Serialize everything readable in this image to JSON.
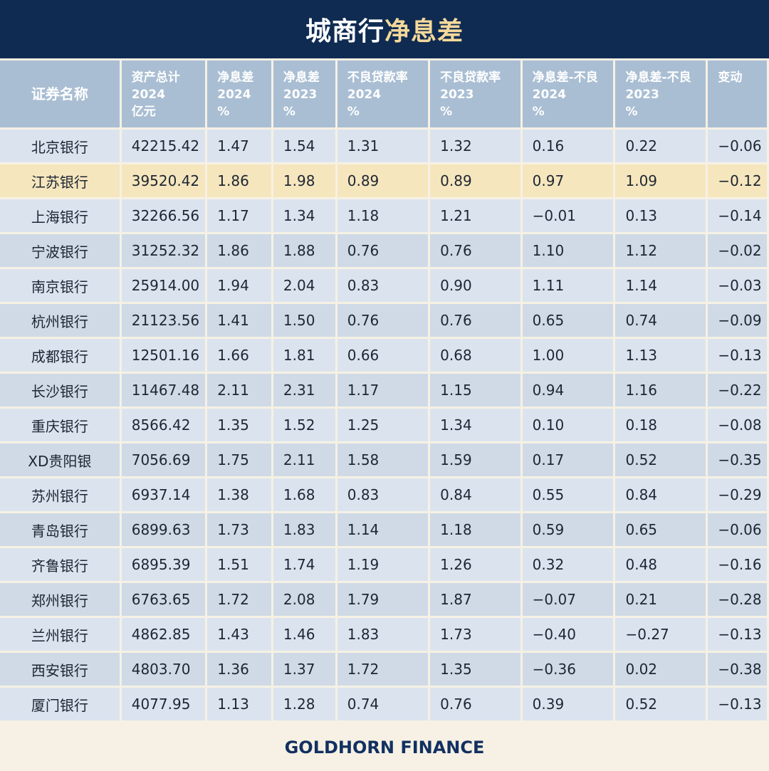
{
  "title": {
    "part1": "城商行",
    "part2": "净息差"
  },
  "colors": {
    "header_bg": "#0f2b52",
    "accent_gold": "#f4d99a",
    "highlight_row": "#f6e6bd"
  },
  "footer": "GOLDHORN FINANCE",
  "chart_data": {
    "type": "table",
    "highlight_row_index": 1,
    "columns": [
      {
        "lines": [
          "证券名称"
        ]
      },
      {
        "lines": [
          "资产总计",
          "2024",
          "亿元"
        ]
      },
      {
        "lines": [
          "净息差",
          "2024",
          "%"
        ]
      },
      {
        "lines": [
          "净息差",
          "2023",
          "%"
        ]
      },
      {
        "lines": [
          "不良贷款率",
          "2024",
          "%"
        ]
      },
      {
        "lines": [
          "不良贷款率",
          "2023",
          "%"
        ]
      },
      {
        "lines": [
          "净息差-不良",
          "2024",
          "%"
        ]
      },
      {
        "lines": [
          "净息差-不良",
          "2023",
          "%"
        ]
      },
      {
        "lines": [
          "变动"
        ]
      }
    ],
    "rows": [
      [
        "北京银行",
        "42215.42",
        "1.47",
        "1.54",
        "1.31",
        "1.32",
        "0.16",
        "0.22",
        "−0.06"
      ],
      [
        "江苏银行",
        "39520.42",
        "1.86",
        "1.98",
        "0.89",
        "0.89",
        "0.97",
        "1.09",
        "−0.12"
      ],
      [
        "上海银行",
        "32266.56",
        "1.17",
        "1.34",
        "1.18",
        "1.21",
        "−0.01",
        "0.13",
        "−0.14"
      ],
      [
        "宁波银行",
        "31252.32",
        "1.86",
        "1.88",
        "0.76",
        "0.76",
        "1.10",
        "1.12",
        "−0.02"
      ],
      [
        "南京银行",
        "25914.00",
        "1.94",
        "2.04",
        "0.83",
        "0.90",
        "1.11",
        "1.14",
        "−0.03"
      ],
      [
        "杭州银行",
        "21123.56",
        "1.41",
        "1.50",
        "0.76",
        "0.76",
        "0.65",
        "0.74",
        "−0.09"
      ],
      [
        "成都银行",
        "12501.16",
        "1.66",
        "1.81",
        "0.66",
        "0.68",
        "1.00",
        "1.13",
        "−0.13"
      ],
      [
        "长沙银行",
        "11467.48",
        "2.11",
        "2.31",
        "1.17",
        "1.15",
        "0.94",
        "1.16",
        "−0.22"
      ],
      [
        "重庆银行",
        "8566.42",
        "1.35",
        "1.52",
        "1.25",
        "1.34",
        "0.10",
        "0.18",
        "−0.08"
      ],
      [
        "XD贵阳银",
        "7056.69",
        "1.75",
        "2.11",
        "1.58",
        "1.59",
        "0.17",
        "0.52",
        "−0.35"
      ],
      [
        "苏州银行",
        "6937.14",
        "1.38",
        "1.68",
        "0.83",
        "0.84",
        "0.55",
        "0.84",
        "−0.29"
      ],
      [
        "青岛银行",
        "6899.63",
        "1.73",
        "1.83",
        "1.14",
        "1.18",
        "0.59",
        "0.65",
        "−0.06"
      ],
      [
        "齐鲁银行",
        "6895.39",
        "1.51",
        "1.74",
        "1.19",
        "1.26",
        "0.32",
        "0.48",
        "−0.16"
      ],
      [
        "郑州银行",
        "6763.65",
        "1.72",
        "2.08",
        "1.79",
        "1.87",
        "−0.07",
        "0.21",
        "−0.28"
      ],
      [
        "兰州银行",
        "4862.85",
        "1.43",
        "1.46",
        "1.83",
        "1.73",
        "−0.40",
        "−0.27",
        "−0.13"
      ],
      [
        "西安银行",
        "4803.70",
        "1.36",
        "1.37",
        "1.72",
        "1.35",
        "−0.36",
        "0.02",
        "−0.38"
      ],
      [
        "厦门银行",
        "4077.95",
        "1.13",
        "1.28",
        "0.74",
        "0.76",
        "0.39",
        "0.52",
        "−0.13"
      ]
    ]
  }
}
